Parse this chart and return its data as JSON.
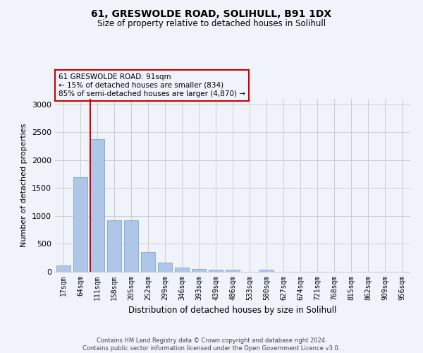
{
  "title1": "61, GRESWOLDE ROAD, SOLIHULL, B91 1DX",
  "title2": "Size of property relative to detached houses in Solihull",
  "xlabel": "Distribution of detached houses by size in Solihull",
  "ylabel": "Number of detached properties",
  "categories": [
    "17sqm",
    "64sqm",
    "111sqm",
    "158sqm",
    "205sqm",
    "252sqm",
    "299sqm",
    "346sqm",
    "393sqm",
    "439sqm",
    "486sqm",
    "533sqm",
    "580sqm",
    "627sqm",
    "674sqm",
    "721sqm",
    "768sqm",
    "815sqm",
    "862sqm",
    "909sqm",
    "956sqm"
  ],
  "values": [
    115,
    1700,
    2380,
    930,
    930,
    350,
    160,
    80,
    55,
    35,
    35,
    0,
    35,
    0,
    0,
    0,
    0,
    0,
    0,
    0,
    0
  ],
  "bar_color": "#aec6e8",
  "bar_edge_color": "#7fa8d0",
  "grid_color": "#cccccc",
  "background_color": "#f0f4fa",
  "annotation_box_color": "#cc0000",
  "property_line_color": "#cc0000",
  "property_label": "61 GRESWOLDE ROAD: 91sqm",
  "smaller_pct": "15%",
  "smaller_count": "834",
  "larger_pct": "85%",
  "larger_count": "4,870",
  "ylim": [
    0,
    3100
  ],
  "yticks": [
    0,
    500,
    1000,
    1500,
    2000,
    2500,
    3000
  ],
  "footnote1": "Contains HM Land Registry data © Crown copyright and database right 2024.",
  "footnote2": "Contains public sector information licensed under the Open Government Licence v3.0."
}
